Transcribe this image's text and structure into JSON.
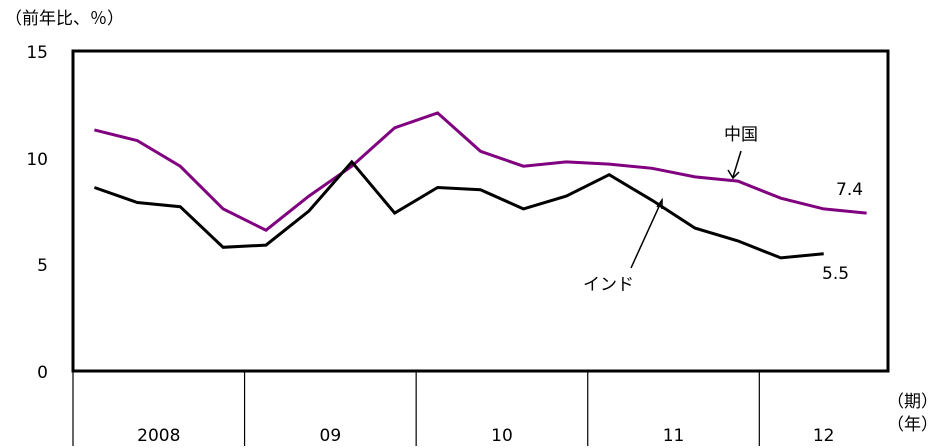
{
  "chart_data": {
    "type": "line",
    "unit_label": "（前年比、％）",
    "xlabel_top": "（期）",
    "xlabel_bottom": "（年）",
    "ylim": [
      0,
      15
    ],
    "yticks": [
      "0",
      "5",
      "10",
      "15"
    ],
    "year_groups": [
      {
        "label": "2008",
        "quarters": 4
      },
      {
        "label": "09",
        "quarters": 4
      },
      {
        "label": "10",
        "quarters": 4
      },
      {
        "label": "11",
        "quarters": 4
      },
      {
        "label": "12",
        "quarters": 3
      }
    ],
    "series": [
      {
        "name": "中国",
        "color": "#800080",
        "values": [
          11.3,
          10.8,
          9.6,
          7.6,
          6.6,
          8.2,
          9.6,
          11.4,
          12.1,
          10.3,
          9.6,
          9.8,
          9.7,
          9.5,
          9.1,
          8.9,
          8.1,
          7.6,
          7.4
        ],
        "end_label": "7.4"
      },
      {
        "name": "インド",
        "color": "#000000",
        "values": [
          8.6,
          7.9,
          7.7,
          5.8,
          5.9,
          7.5,
          9.8,
          7.4,
          8.6,
          8.5,
          7.6,
          8.2,
          9.2,
          8.0,
          6.7,
          6.1,
          5.3,
          5.5
        ],
        "end_label": "5.5"
      }
    ]
  }
}
